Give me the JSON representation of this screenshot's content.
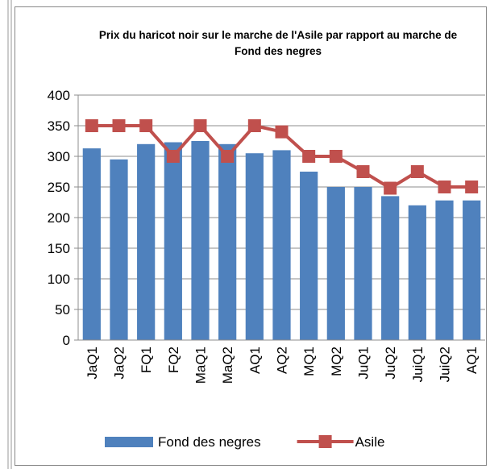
{
  "chart_data": {
    "type": "bar",
    "title": "Prix du haricot noir sur le marche de l'Asile par rapport au marche de Fond des negres",
    "categories": [
      "JaQ1",
      "JaQ2",
      "FQ1",
      "FQ2",
      "MaQ1",
      "MaQ2",
      "AQ1",
      "AQ2",
      "MQ1",
      "MQ2",
      "JuQ1",
      "JuQ2",
      "JuiQ1",
      "JuiQ2",
      "AQ1"
    ],
    "series": [
      {
        "name": "Fond des negres",
        "type": "bar",
        "color": "#4f81bd",
        "values": [
          313,
          295,
          320,
          323,
          325,
          320,
          305,
          310,
          275,
          250,
          250,
          235,
          220,
          228,
          228
        ]
      },
      {
        "name": "Asile",
        "type": "line",
        "color": "#c0504d",
        "values": [
          350,
          350,
          350,
          300,
          350,
          300,
          350,
          340,
          300,
          300,
          275,
          248,
          275,
          250,
          250
        ]
      }
    ],
    "ylim": [
      0,
      400
    ],
    "yticks": [
      0,
      50,
      100,
      150,
      200,
      250,
      300,
      350,
      400
    ],
    "grid": true,
    "legend": "bottom"
  }
}
